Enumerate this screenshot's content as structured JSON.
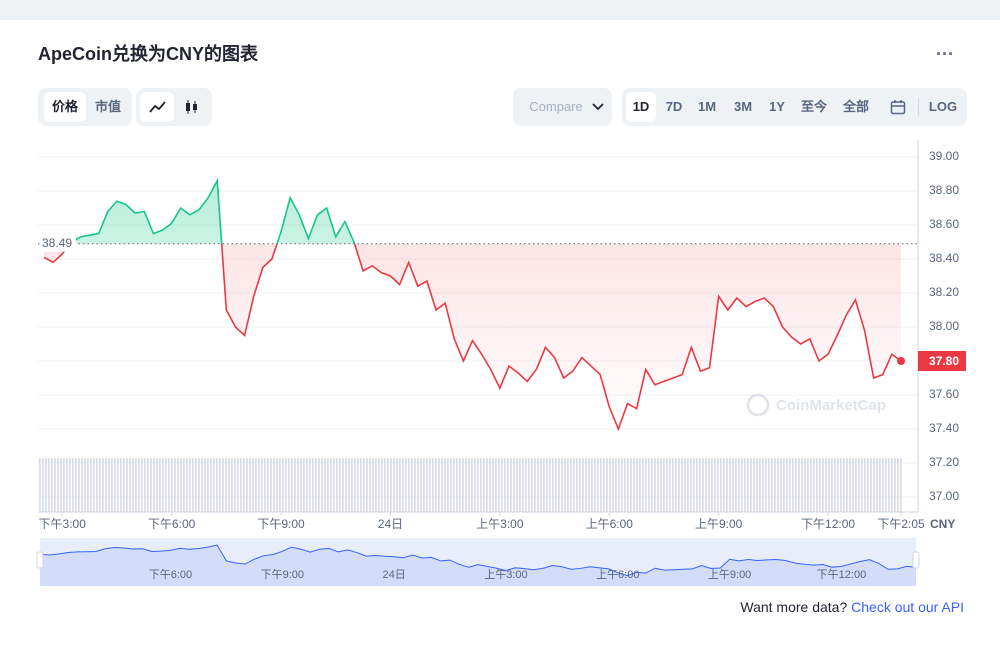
{
  "header": {
    "title": "ApeCoin兑换为CNY的图表"
  },
  "controls": {
    "metric_tabs": [
      "价格",
      "市值"
    ],
    "compare": "Compare",
    "ranges": [
      "1D",
      "7D",
      "1M",
      "3M",
      "1Y",
      "至今",
      "全部"
    ],
    "log": "LOG"
  },
  "chart_data": {
    "type": "line",
    "categories": [
      null,
      null,
      "下午3:00",
      null,
      null,
      null,
      null,
      null,
      null,
      null,
      null,
      null,
      null,
      null,
      "下午6:00",
      null,
      null,
      null,
      null,
      null,
      null,
      null,
      null,
      null,
      null,
      null,
      "下午9:00",
      null,
      null,
      null,
      null,
      null,
      null,
      null,
      null,
      null,
      null,
      null,
      "24日",
      null,
      null,
      null,
      null,
      null,
      null,
      null,
      null,
      null,
      null,
      null,
      "上午3:00",
      null,
      null,
      null,
      null,
      null,
      null,
      null,
      null,
      null,
      null,
      null,
      "上午6:00",
      null,
      null,
      null,
      null,
      null,
      null,
      null,
      null,
      null,
      null,
      null,
      "上午9:00",
      null,
      null,
      null,
      null,
      null,
      null,
      null,
      null,
      null,
      null,
      null,
      "下午12:00",
      null,
      null,
      null,
      null,
      null,
      null,
      null,
      "下午2:05"
    ],
    "values": [
      38.41,
      38.38,
      38.43,
      38.5,
      38.53,
      38.54,
      38.55,
      38.68,
      38.74,
      38.72,
      38.67,
      38.68,
      38.55,
      38.57,
      38.61,
      38.7,
      38.66,
      38.69,
      38.76,
      38.86,
      38.1,
      38.0,
      37.95,
      38.18,
      38.35,
      38.4,
      38.56,
      38.76,
      38.66,
      38.52,
      38.66,
      38.7,
      38.53,
      38.62,
      38.5,
      38.33,
      38.36,
      38.32,
      38.3,
      38.25,
      38.38,
      38.24,
      38.27,
      38.1,
      38.14,
      37.93,
      37.8,
      37.92,
      37.84,
      37.75,
      37.64,
      37.77,
      37.73,
      37.68,
      37.75,
      37.88,
      37.82,
      37.7,
      37.74,
      37.82,
      37.77,
      37.72,
      37.53,
      37.4,
      37.55,
      37.52,
      37.75,
      37.66,
      37.68,
      37.7,
      37.72,
      37.88,
      37.74,
      37.76,
      38.18,
      38.1,
      38.17,
      38.12,
      38.15,
      38.17,
      38.12,
      38.0,
      37.94,
      37.9,
      37.93,
      37.8,
      37.84,
      37.95,
      38.07,
      38.16,
      37.98,
      37.7,
      37.72,
      37.84,
      37.8
    ],
    "color_up": "#16c784",
    "color_down": "#ea3943",
    "baseline": 38.49,
    "current_label": "37.80",
    "ylim": [
      36.9,
      39.1
    ],
    "yticks": [
      {
        "value": 37,
        "label": "37.00"
      },
      {
        "value": 37.2,
        "label": "37.20"
      },
      {
        "value": 37.4,
        "label": "37.40"
      },
      {
        "value": 37.6,
        "label": "37.60"
      },
      {
        "value": 37.8,
        "label": "37.80"
      },
      {
        "value": 38,
        "label": "38.00"
      },
      {
        "value": 38.2,
        "label": "38.20"
      },
      {
        "value": 38.4,
        "label": "38.40"
      },
      {
        "value": 38.6,
        "label": "38.60"
      },
      {
        "value": 38.8,
        "label": "38.80"
      },
      {
        "value": 39,
        "label": "39.00"
      }
    ],
    "y_unit": "CNY",
    "grid": true,
    "log_scale": false,
    "watermark": "CoinMarketCap"
  },
  "footer": {
    "prompt": "Want more data?",
    "link": "Check out our API"
  }
}
